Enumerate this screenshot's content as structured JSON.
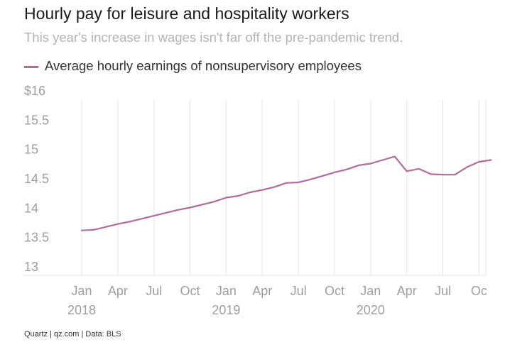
{
  "title": "Hourly pay for leisure and hospitality workers",
  "subtitle": "This year's increase in wages isn't far off the pre-pandemic trend.",
  "source": "Quartz | qz.com | Data: BLS",
  "colors": {
    "line": "#b06b9a",
    "grid": "#e6e6e6",
    "axis_text": "#9e9e9e"
  },
  "chart_data": {
    "type": "line",
    "title": "Hourly pay for leisure and hospitality workers",
    "subtitle": "This year's increase in wages isn't far off the pre-pandemic trend.",
    "xlabel": "",
    "ylabel": "",
    "ylim": [
      13,
      16
    ],
    "y_ticks": [
      13,
      13.5,
      14,
      14.5,
      15,
      15.5,
      16
    ],
    "y_tick_labels": [
      "13",
      "13.5",
      "14",
      "14.5",
      "15",
      "15.5",
      "$16"
    ],
    "xlim": [
      "2018-01",
      "2020-12"
    ],
    "x_ticks": [
      {
        "date": "2018-01",
        "label": "Jan",
        "year": "2018"
      },
      {
        "date": "2018-04",
        "label": "Apr",
        "year": ""
      },
      {
        "date": "2018-07",
        "label": "Jul",
        "year": ""
      },
      {
        "date": "2018-10",
        "label": "Oct",
        "year": ""
      },
      {
        "date": "2019-01",
        "label": "Jan",
        "year": "2019"
      },
      {
        "date": "2019-04",
        "label": "Apr",
        "year": ""
      },
      {
        "date": "2019-07",
        "label": "Jul",
        "year": ""
      },
      {
        "date": "2019-10",
        "label": "Oct",
        "year": ""
      },
      {
        "date": "2020-01",
        "label": "Jan",
        "year": "2020"
      },
      {
        "date": "2020-04",
        "label": "Apr",
        "year": ""
      },
      {
        "date": "2020-07",
        "label": "Jul",
        "year": ""
      },
      {
        "date": "2020-10",
        "label": "Oc",
        "year": ""
      }
    ],
    "grid": "vertical",
    "legend": "top-left",
    "series": [
      {
        "name": "Average hourly earnings of nonsupervisory employees",
        "x": [
          "2018-01",
          "2018-02",
          "2018-03",
          "2018-04",
          "2018-05",
          "2018-06",
          "2018-07",
          "2018-08",
          "2018-09",
          "2018-10",
          "2018-11",
          "2018-12",
          "2019-01",
          "2019-02",
          "2019-03",
          "2019-04",
          "2019-05",
          "2019-06",
          "2019-07",
          "2019-08",
          "2019-09",
          "2019-10",
          "2019-11",
          "2019-12",
          "2020-01",
          "2020-02",
          "2020-03",
          "2020-04",
          "2020-05",
          "2020-06",
          "2020-07",
          "2020-08",
          "2020-09",
          "2020-10",
          "2020-11"
        ],
        "values": [
          13.62,
          13.63,
          13.68,
          13.73,
          13.77,
          13.82,
          13.87,
          13.92,
          13.97,
          14.01,
          14.06,
          14.11,
          14.18,
          14.21,
          14.27,
          14.31,
          14.36,
          14.43,
          14.44,
          14.49,
          14.55,
          14.61,
          14.66,
          14.73,
          14.76,
          14.82,
          14.88,
          14.63,
          14.67,
          14.58,
          14.57,
          14.57,
          14.7,
          14.79,
          14.82
        ]
      }
    ]
  }
}
